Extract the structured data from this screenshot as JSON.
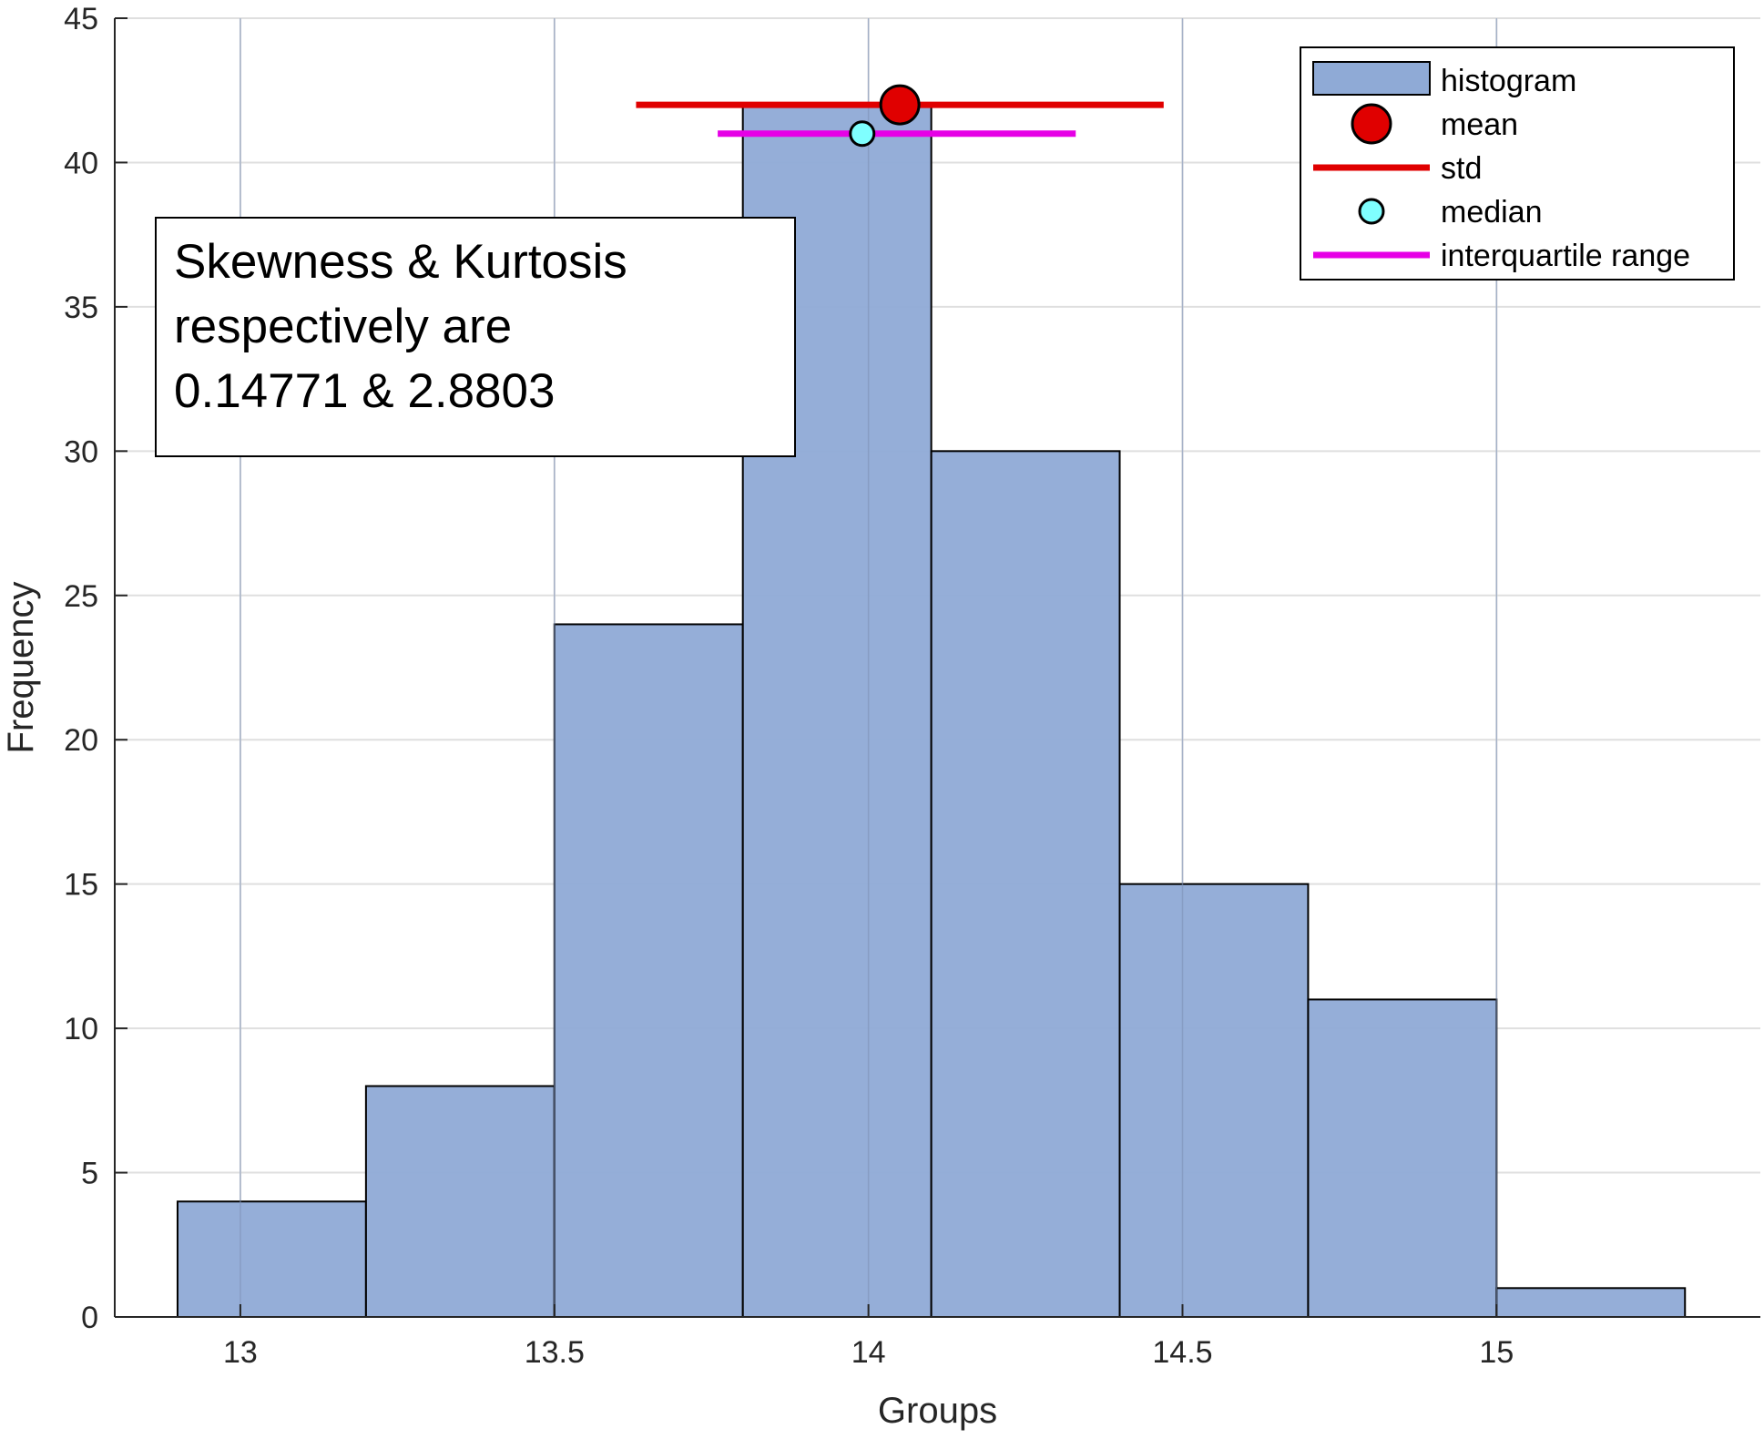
{
  "chart_data": {
    "type": "bar",
    "title": "",
    "xlabel": "Groups",
    "ylabel": "Frequency",
    "xlim": [
      12.8,
      15.42
    ],
    "ylim": [
      0,
      45
    ],
    "xticks": [
      13,
      13.5,
      14,
      14.5,
      15
    ],
    "xtick_labels": [
      "13",
      "13.5",
      "14",
      "14.5",
      "15"
    ],
    "yticks": [
      0,
      5,
      10,
      15,
      20,
      25,
      30,
      35,
      40,
      45
    ],
    "ytick_labels": [
      "0",
      "5",
      "10",
      "15",
      "20",
      "25",
      "30",
      "35",
      "40",
      "45"
    ],
    "grid": true,
    "legend_position": "top-right",
    "bin_edges": [
      12.9,
      13.2,
      13.5,
      13.8,
      14.1,
      14.4,
      14.7,
      15.0,
      15.3
    ],
    "counts": [
      4,
      8,
      24,
      42,
      30,
      15,
      11,
      1
    ],
    "mean": {
      "x": 14.05,
      "y": 42
    },
    "std": {
      "from": 13.63,
      "to": 14.47,
      "y": 42
    },
    "median": {
      "x": 13.99,
      "y": 41
    },
    "interquartile_range": {
      "from": 13.76,
      "to": 14.33,
      "y": 41
    },
    "legend": [
      {
        "label": "histogram",
        "kind": "patch"
      },
      {
        "label": "mean",
        "kind": "marker-large"
      },
      {
        "label": "std",
        "kind": "line-red"
      },
      {
        "label": "median",
        "kind": "marker-small"
      },
      {
        "label": "interquartile range",
        "kind": "line-magenta"
      }
    ],
    "annotation": {
      "lines": [
        "Skewness & Kurtosis",
        "respectively are",
        "0.14771 & 2.8803"
      ]
    }
  },
  "colors": {
    "bar_fill": "#8FAAD6",
    "bar_edge": "#000000",
    "axis": "#262626",
    "grid": "#DFDFDF",
    "mean": "#E00000",
    "std": "#E00000",
    "median": "#7FFFFF",
    "iqr": "#E600E6"
  }
}
